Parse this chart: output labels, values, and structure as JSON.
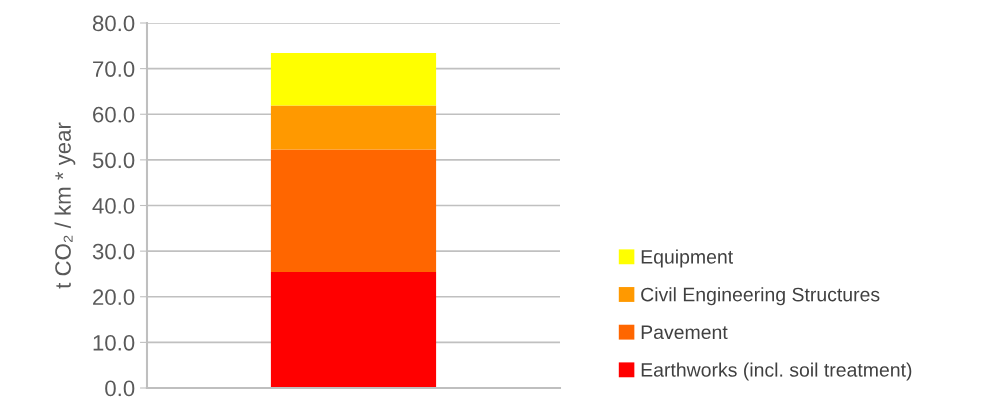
{
  "chart_data": {
    "type": "bar",
    "stacked": true,
    "ylabel": "t CO₂ / km * year",
    "categories": [
      null
    ],
    "series": [
      {
        "name": "Earthworks (incl. soil treatment)",
        "color": "#ff0000",
        "values": [
          25.4
        ]
      },
      {
        "name": "Pavement",
        "color": "#ff6600",
        "values": [
          26.9
        ]
      },
      {
        "name": "Civil Engineering Structures",
        "color": "#ff9900",
        "values": [
          9.6
        ]
      },
      {
        "name": "Equipment",
        "color": "#ffff00",
        "values": [
          11.5
        ]
      }
    ],
    "ylim": [
      0,
      80
    ],
    "yticks": [
      {
        "value": 0,
        "label": "0.0"
      },
      {
        "value": 10,
        "label": "10.0"
      },
      {
        "value": 20,
        "label": "20.0"
      },
      {
        "value": 30,
        "label": "30.0"
      },
      {
        "value": 40,
        "label": "40.0"
      },
      {
        "value": 50,
        "label": "50.0"
      },
      {
        "value": 60,
        "label": "60.0"
      },
      {
        "value": 70,
        "label": "70.0"
      },
      {
        "value": 80,
        "label": "80.0"
      }
    ],
    "grid": "y",
    "legend": "right"
  }
}
